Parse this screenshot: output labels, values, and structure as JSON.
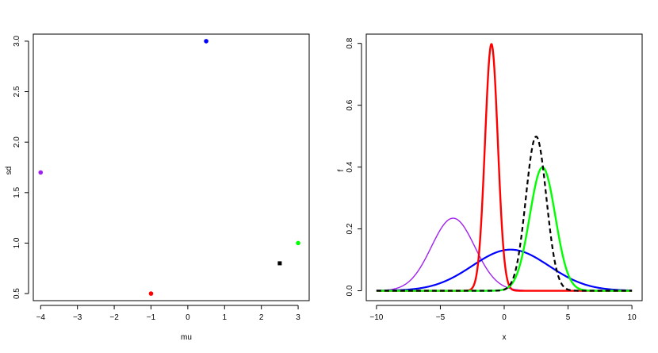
{
  "chart_data": [
    {
      "type": "scatter",
      "title": "",
      "xlabel": "mu",
      "ylabel": "sd",
      "xlim": [
        -4.2,
        3.3
      ],
      "ylim": [
        0.43,
        3.07
      ],
      "xticks": [
        -4,
        -3,
        -2,
        -1,
        0,
        1,
        2,
        3
      ],
      "yticks": [
        0.5,
        1.0,
        1.5,
        2.0,
        2.5,
        3.0
      ],
      "xtick_labels": [
        "−4",
        "−3",
        "−2",
        "−1",
        "0",
        "1",
        "2",
        "3"
      ],
      "ytick_labels": [
        "0.5",
        "1.0",
        "1.5",
        "2.0",
        "2.5",
        "3.0"
      ],
      "grid": false,
      "points": [
        {
          "x": -4,
          "y": 1.7,
          "color": "#a020f0",
          "marker": "circle"
        },
        {
          "x": -1,
          "y": 0.5,
          "color": "#ff0000",
          "marker": "circle"
        },
        {
          "x": 0.5,
          "y": 3.0,
          "color": "#0000ff",
          "marker": "circle"
        },
        {
          "x": 3,
          "y": 1.0,
          "color": "#00ff00",
          "marker": "circle"
        },
        {
          "x": 2.5,
          "y": 0.8,
          "color": "#000000",
          "marker": "square"
        }
      ]
    },
    {
      "type": "line",
      "title": "",
      "xlabel": "x",
      "ylabel": "f",
      "xlim": [
        -10.8,
        10.8
      ],
      "ylim": [
        -0.032,
        0.83
      ],
      "xticks": [
        -10,
        -5,
        0,
        5,
        10
      ],
      "yticks": [
        0.0,
        0.2,
        0.4,
        0.6,
        0.8
      ],
      "xtick_labels": [
        "−10",
        "−5",
        "0",
        "5",
        "10"
      ],
      "ytick_labels": [
        "0.0",
        "0.2",
        "0.4",
        "0.6",
        "0.8"
      ],
      "grid": false,
      "x_range": [
        -10,
        10
      ],
      "series": [
        {
          "mu": -4,
          "sd": 1.7,
          "color": "#a020f0",
          "width": 1.4,
          "dash": ""
        },
        {
          "mu": 0.5,
          "sd": 3.0,
          "color": "#0000ff",
          "width": 2.2,
          "dash": ""
        },
        {
          "mu": -1,
          "sd": 0.5,
          "color": "#ff0000",
          "width": 2.4,
          "dash": ""
        },
        {
          "mu": 3,
          "sd": 1.0,
          "color": "#00ff00",
          "width": 2.4,
          "dash": ""
        },
        {
          "mu": 2.5,
          "sd": 0.8,
          "color": "#000000",
          "width": 2.2,
          "dash": "6,4"
        }
      ]
    }
  ]
}
